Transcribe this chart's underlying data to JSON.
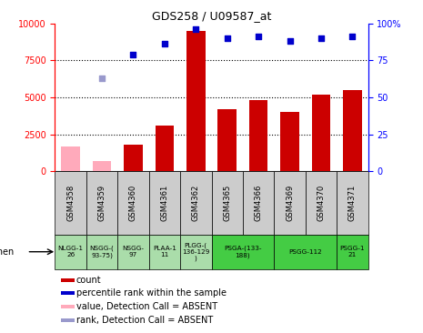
{
  "title": "GDS258 / U09587_at",
  "gsm_labels": [
    "GSM4358",
    "GSM4359",
    "GSM4360",
    "GSM4361",
    "GSM4362",
    "GSM4365",
    "GSM4366",
    "GSM4369",
    "GSM4370",
    "GSM4371"
  ],
  "count_values": [
    null,
    null,
    1800,
    3100,
    9500,
    4200,
    4800,
    4000,
    5200,
    5500
  ],
  "absent_count_values": [
    1700,
    700,
    null,
    null,
    null,
    null,
    null,
    null,
    null,
    null
  ],
  "percentile_values": [
    null,
    null,
    79,
    86,
    96,
    90,
    91,
    88,
    90,
    91
  ],
  "absent_percentile_values": [
    null,
    63,
    null,
    null,
    null,
    null,
    null,
    null,
    null,
    null
  ],
  "ylim_left": [
    0,
    10000
  ],
  "ylim_right": [
    0,
    100
  ],
  "yticks_left": [
    0,
    2500,
    5000,
    7500,
    10000
  ],
  "yticks_right": [
    0,
    25,
    50,
    75,
    100
  ],
  "ytick_labels_left": [
    "0",
    "2500",
    "5000",
    "7500",
    "10000"
  ],
  "ytick_labels_right": [
    "0",
    "25",
    "50",
    "75",
    "100%"
  ],
  "bar_color": "#cc0000",
  "absent_bar_color": "#ffaabb",
  "dot_color": "#0000cc",
  "absent_dot_color": "#9999cc",
  "gsm_box_color": "#cccccc",
  "specimen_groups": [
    {
      "label": "NLGG-1\n26",
      "color": "#aaddaa",
      "span": [
        0,
        1
      ]
    },
    {
      "label": "NSGG-(\n93-75)",
      "color": "#aaddaa",
      "span": [
        1,
        2
      ]
    },
    {
      "label": "NSGG-\n97",
      "color": "#aaddaa",
      "span": [
        2,
        3
      ]
    },
    {
      "label": "PLAA-1\n11",
      "color": "#aaddaa",
      "span": [
        3,
        4
      ]
    },
    {
      "label": "PLGG-(\n136-129\n)",
      "color": "#aaddaa",
      "span": [
        4,
        5
      ]
    },
    {
      "label": "PSGA-(133-\n188)",
      "color": "#44cc44",
      "span": [
        5,
        7
      ]
    },
    {
      "label": "PSGG-112",
      "color": "#44cc44",
      "span": [
        7,
        9
      ]
    },
    {
      "label": "PSGG-1\n21",
      "color": "#44cc44",
      "span": [
        9,
        10
      ]
    }
  ],
  "legend_items": [
    {
      "label": "count",
      "color": "#cc0000"
    },
    {
      "label": "percentile rank within the sample",
      "color": "#0000cc"
    },
    {
      "label": "value, Detection Call = ABSENT",
      "color": "#ffaabb"
    },
    {
      "label": "rank, Detection Call = ABSENT",
      "color": "#9999cc"
    }
  ]
}
